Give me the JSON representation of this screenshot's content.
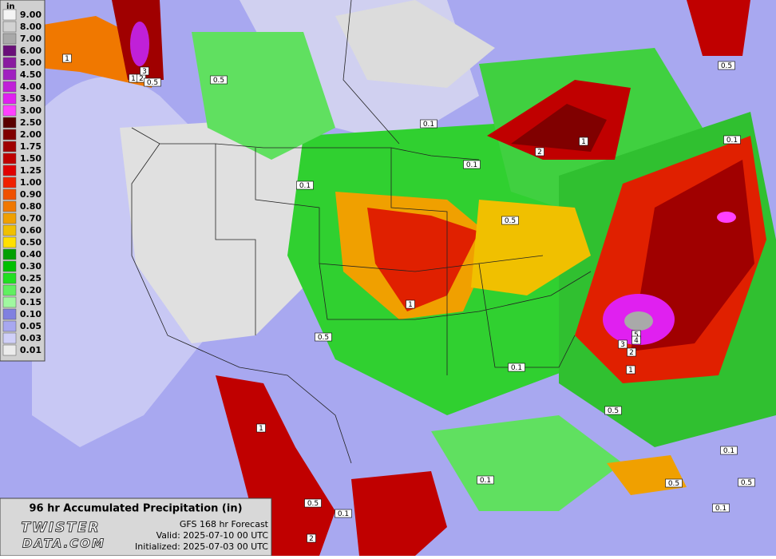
{
  "legend": {
    "unit": "in",
    "levels": [
      {
        "label": "9.00",
        "color": "#f4f4f4"
      },
      {
        "label": "8.00",
        "color": "#d2d2d2"
      },
      {
        "label": "7.00",
        "color": "#a9a9a9"
      },
      {
        "label": "6.00",
        "color": "#6a0f7a"
      },
      {
        "label": "5.00",
        "color": "#8a1aa0"
      },
      {
        "label": "4.50",
        "color": "#a020c0"
      },
      {
        "label": "4.00",
        "color": "#c020d8"
      },
      {
        "label": "3.50",
        "color": "#e020f0"
      },
      {
        "label": "3.00",
        "color": "#ff40ff"
      },
      {
        "label": "2.50",
        "color": "#5a0000"
      },
      {
        "label": "2.00",
        "color": "#800000"
      },
      {
        "label": "1.75",
        "color": "#a00000"
      },
      {
        "label": "1.50",
        "color": "#c00000"
      },
      {
        "label": "1.25",
        "color": "#e00000"
      },
      {
        "label": "1.00",
        "color": "#f02000"
      },
      {
        "label": "0.90",
        "color": "#f05000"
      },
      {
        "label": "0.80",
        "color": "#f07800"
      },
      {
        "label": "0.70",
        "color": "#f0a000"
      },
      {
        "label": "0.60",
        "color": "#f0c000"
      },
      {
        "label": "0.50",
        "color": "#ffe000"
      },
      {
        "label": "0.40",
        "color": "#00a000"
      },
      {
        "label": "0.30",
        "color": "#00c000"
      },
      {
        "label": "0.25",
        "color": "#20e020"
      },
      {
        "label": "0.20",
        "color": "#60f060"
      },
      {
        "label": "0.15",
        "color": "#a0f8a0"
      },
      {
        "label": "0.10",
        "color": "#8080e0"
      },
      {
        "label": "0.05",
        "color": "#a8a8f0"
      },
      {
        "label": "0.03",
        "color": "#d0d0f8"
      },
      {
        "label": "0.01",
        "color": "#ececec"
      }
    ]
  },
  "map": {
    "contour_labels": [
      "1",
      "1",
      "2",
      "3",
      "0.5",
      "0.5",
      "0.1",
      "0.1",
      "0.1",
      "2",
      "1",
      "0.5",
      "0.1",
      "0.5",
      "1",
      "0.5",
      "5",
      "4",
      "3",
      "2",
      "1",
      "0.1",
      "0.5",
      "1",
      "0.1",
      "0.1",
      "0.5",
      "0.5",
      "0.1",
      "0.5",
      "0.1",
      "2"
    ]
  },
  "footer": {
    "title": "96 hr Accumulated Precipitation (in)",
    "logo_top": "TWISTER",
    "logo_bottom": "DATA.COM",
    "model": "GFS 168 hr Forecast",
    "valid": "Valid: 2025-07-10 00 UTC",
    "initialized": "Initialized: 2025-07-03 00 UTC"
  }
}
